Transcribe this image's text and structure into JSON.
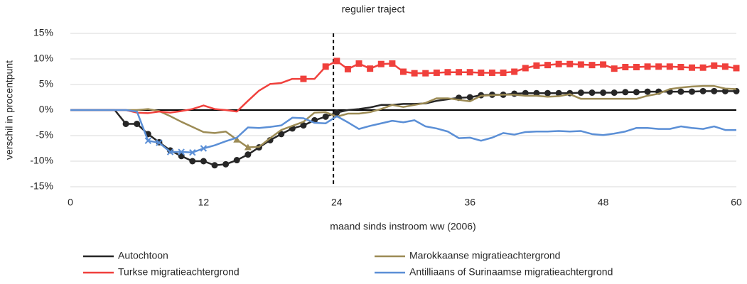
{
  "chart_data": {
    "type": "line",
    "title": "regulier traject",
    "x_label": "maand sinds instroom ww (2006)",
    "y_label": "verschil in procentpunt",
    "x": [
      0,
      1,
      2,
      3,
      4,
      5,
      6,
      7,
      8,
      9,
      10,
      11,
      12,
      13,
      14,
      15,
      16,
      17,
      18,
      19,
      20,
      21,
      22,
      23,
      24,
      25,
      26,
      27,
      28,
      29,
      30,
      31,
      32,
      33,
      34,
      35,
      36,
      37,
      38,
      39,
      40,
      41,
      42,
      43,
      44,
      45,
      46,
      47,
      48,
      49,
      50,
      51,
      52,
      53,
      54,
      55,
      56,
      57,
      58,
      59,
      60
    ],
    "xlim": [
      0,
      60
    ],
    "xticks": [
      0,
      12,
      24,
      36,
      48,
      60
    ],
    "ylim": [
      -15,
      15
    ],
    "yticks": [
      {
        "value": -15,
        "label": "-15%"
      },
      {
        "value": -10,
        "label": "-10%"
      },
      {
        "value": -5,
        "label": "-5%"
      },
      {
        "value": 0,
        "label": "0%"
      },
      {
        "value": 5,
        "label": "5%"
      },
      {
        "value": 10,
        "label": "10%"
      },
      {
        "value": 15,
        "label": "15%"
      }
    ],
    "grid": true,
    "vline_x": 23.7,
    "series": [
      {
        "name": "Autochtoon",
        "color": "#262626",
        "marker": "circle",
        "marked_ranges": [
          [
            5,
            24
          ],
          [
            35,
            60
          ]
        ],
        "values": [
          0,
          0,
          0,
          0,
          0,
          -2.7,
          -2.7,
          -4.7,
          -6.3,
          -7.9,
          -9.0,
          -10.0,
          -10.0,
          -10.8,
          -10.6,
          -9.8,
          -8.7,
          -7.3,
          -5.9,
          -4.7,
          -3.6,
          -3.0,
          -2.0,
          -1.3,
          -0.5,
          0,
          0.2,
          0.5,
          1.0,
          1.0,
          1.2,
          1.2,
          1.3,
          1.8,
          2.1,
          2.4,
          2.5,
          2.9,
          3.0,
          3.0,
          3.2,
          3.3,
          3.3,
          3.3,
          3.3,
          3.3,
          3.4,
          3.4,
          3.4,
          3.4,
          3.5,
          3.5,
          3.6,
          3.6,
          3.6,
          3.6,
          3.6,
          3.7,
          3.7,
          3.7,
          3.7
        ]
      },
      {
        "name": "Marokkaanse migratieachtergrond",
        "color": "#9c8b55",
        "marker": "triangle",
        "marked_ranges": [
          [
            15,
            16
          ]
        ],
        "values": [
          0,
          0,
          0,
          0,
          0,
          0,
          0,
          0.2,
          -0.2,
          -1.2,
          -2.3,
          -3.3,
          -4.3,
          -4.5,
          -4.2,
          -5.8,
          -7.3,
          -7.2,
          -5.5,
          -3.9,
          -3.1,
          -2.3,
          -0.5,
          -0.4,
          -1.3,
          -0.7,
          -0.7,
          -0.4,
          0.2,
          1.0,
          0.6,
          1.0,
          1.4,
          2.3,
          2.3,
          2.0,
          1.7,
          2.8,
          2.9,
          3.0,
          3.0,
          2.8,
          2.8,
          2.6,
          2.7,
          3.1,
          2.2,
          2.2,
          2.2,
          2.2,
          2.2,
          2.2,
          2.8,
          3.2,
          4.1,
          4.4,
          4.6,
          4.7,
          4.7,
          4.2,
          4.1
        ]
      },
      {
        "name": "Turkse migratieachtergrond",
        "color": "#f0403c",
        "marker": "square",
        "marked_ranges": [
          [
            21,
            21
          ],
          [
            23,
            60
          ]
        ],
        "values": [
          0,
          0,
          0,
          0,
          0,
          0,
          -0.5,
          -0.6,
          -0.3,
          -0.5,
          -0.2,
          0.2,
          0.9,
          0.2,
          0,
          -0.3,
          1.8,
          3.8,
          5.1,
          5.3,
          6.1,
          6.1,
          6.1,
          8.5,
          9.6,
          8.0,
          9.1,
          8.1,
          9.0,
          9.1,
          7.5,
          7.2,
          7.2,
          7.3,
          7.4,
          7.4,
          7.4,
          7.3,
          7.3,
          7.3,
          7.5,
          8.2,
          8.7,
          8.8,
          9.0,
          9.0,
          8.9,
          8.8,
          8.9,
          8.1,
          8.4,
          8.4,
          8.5,
          8.5,
          8.5,
          8.4,
          8.3,
          8.3,
          8.7,
          8.5,
          8.2
        ]
      },
      {
        "name": "Antilliaans of Surinaamse migratieachtergrond",
        "color": "#5b8fd6",
        "marker": "cross",
        "marked_ranges": [
          [
            7,
            12
          ]
        ],
        "values": [
          0,
          0,
          0,
          0,
          0,
          0,
          -0.3,
          -6.0,
          -6.4,
          -8.2,
          -8.2,
          -8.3,
          -7.5,
          -6.9,
          -6.1,
          -5.4,
          -3.4,
          -3.5,
          -3.3,
          -3.0,
          -1.5,
          -1.6,
          -2.5,
          -2.6,
          -1.2,
          -2.4,
          -3.7,
          -3.1,
          -2.6,
          -2.1,
          -2.4,
          -2.0,
          -3.2,
          -3.6,
          -4.2,
          -5.5,
          -5.4,
          -6.0,
          -5.4,
          -4.5,
          -4.8,
          -4.3,
          -4.2,
          -4.2,
          -4.1,
          -4.2,
          -4.1,
          -4.7,
          -4.9,
          -4.6,
          -4.2,
          -3.5,
          -3.5,
          -3.7,
          -3.7,
          -3.2,
          -3.5,
          -3.7,
          -3.2,
          -3.9,
          -3.9
        ]
      }
    ]
  }
}
